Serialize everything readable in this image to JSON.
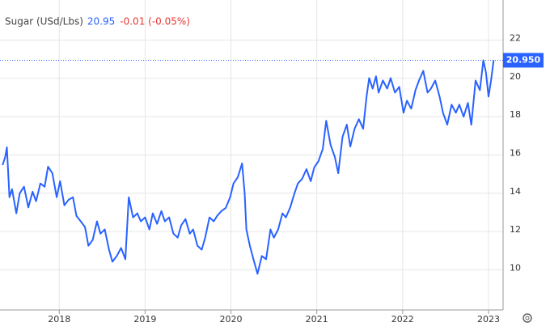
{
  "chart_data": {
    "type": "line",
    "header": {
      "last": 20.95,
      "change": "-0.01 (-0.05%)"
    },
    "last_price": {
      "value": 20.95,
      "label": "20.950"
    },
    "x": [
      2017.34,
      2017.37,
      2017.39,
      2017.42,
      2017.45,
      2017.5,
      2017.54,
      2017.59,
      2017.64,
      2017.69,
      2017.73,
      2017.78,
      2017.83,
      2017.87,
      2017.92,
      2017.97,
      2018.01,
      2018.06,
      2018.11,
      2018.16,
      2018.2,
      2018.25,
      2018.3,
      2018.34,
      2018.39,
      2018.44,
      2018.48,
      2018.53,
      2018.58,
      2018.62,
      2018.67,
      2018.72,
      2018.77,
      2018.81,
      2018.86,
      2018.91,
      2018.95,
      2019.0,
      2019.05,
      2019.09,
      2019.14,
      2019.19,
      2019.23,
      2019.28,
      2019.33,
      2019.38,
      2019.42,
      2019.47,
      2019.52,
      2019.56,
      2019.61,
      2019.66,
      2019.7,
      2019.75,
      2019.8,
      2019.84,
      2019.89,
      2019.94,
      2019.99,
      2020.03,
      2020.08,
      2020.13,
      2020.16,
      2020.18,
      2020.22,
      2020.27,
      2020.31,
      2020.36,
      2020.41,
      2020.46,
      2020.5,
      2020.55,
      2020.6,
      2020.64,
      2020.69,
      2020.74,
      2020.78,
      2020.83,
      2020.88,
      2020.93,
      2020.97,
      2021.02,
      2021.07,
      2021.11,
      2021.16,
      2021.21,
      2021.25,
      2021.3,
      2021.35,
      2021.39,
      2021.44,
      2021.49,
      2021.54,
      2021.58,
      2021.61,
      2021.65,
      2021.69,
      2021.72,
      2021.77,
      2021.82,
      2021.86,
      2021.91,
      2021.96,
      2022.01,
      2022.05,
      2022.1,
      2022.15,
      2022.19,
      2022.24,
      2022.29,
      2022.33,
      2022.38,
      2022.43,
      2022.47,
      2022.52,
      2022.57,
      2022.62,
      2022.66,
      2022.71,
      2022.76,
      2022.8,
      2022.85,
      2022.9,
      2022.94,
      2022.97,
      2023.0,
      2023.03,
      2023.06
    ],
    "series": [
      {
        "name": "Sugar (USd/Lbs)",
        "color": "#2962ff",
        "values": [
          15.47,
          15.89,
          16.4,
          13.79,
          14.21,
          12.95,
          14.0,
          14.34,
          13.26,
          14.08,
          13.58,
          14.51,
          14.34,
          15.39,
          15.05,
          13.79,
          14.63,
          13.37,
          13.66,
          13.79,
          12.82,
          12.53,
          12.23,
          11.26,
          11.56,
          12.53,
          11.89,
          12.11,
          11.05,
          10.42,
          10.72,
          11.14,
          10.55,
          13.79,
          12.74,
          12.95,
          12.53,
          12.74,
          12.11,
          12.95,
          12.4,
          13.07,
          12.53,
          12.74,
          11.89,
          11.68,
          12.32,
          12.65,
          11.89,
          12.11,
          11.26,
          11.05,
          11.68,
          12.74,
          12.53,
          12.82,
          13.07,
          13.24,
          13.79,
          14.51,
          14.84,
          15.56,
          14.0,
          12.11,
          11.26,
          10.42,
          9.79,
          10.72,
          10.55,
          12.11,
          11.68,
          12.11,
          12.95,
          12.74,
          13.26,
          14.0,
          14.51,
          14.76,
          15.26,
          14.63,
          15.35,
          15.68,
          16.32,
          17.79,
          16.53,
          15.89,
          15.05,
          16.95,
          17.58,
          16.44,
          17.37,
          17.87,
          17.37,
          19.05,
          20.02,
          19.47,
          20.11,
          19.26,
          19.89,
          19.47,
          20.02,
          19.26,
          19.56,
          18.21,
          18.84,
          18.42,
          19.39,
          19.89,
          20.4,
          19.26,
          19.47,
          19.89,
          19.05,
          18.21,
          17.58,
          18.63,
          18.21,
          18.63,
          18.0,
          18.72,
          17.58,
          19.89,
          19.39,
          20.95,
          20.32,
          19.05,
          19.89,
          20.95
        ]
      }
    ],
    "xlim": [
      2017.31,
      2023.17
    ],
    "xticks": [
      2018,
      2019,
      2020,
      2021,
      2022,
      2023
    ],
    "ylim": [
      7.9,
      24.1
    ],
    "yticks": [
      10,
      12,
      14,
      16,
      18,
      20,
      22
    ],
    "grid": true
  }
}
